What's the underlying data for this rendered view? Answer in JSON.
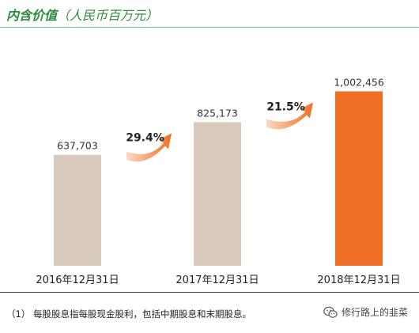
{
  "header": {
    "title_main": "内含价值",
    "title_unit": "（人民币百万元）"
  },
  "chart_data": {
    "type": "bar",
    "title": "内含价值（人民币百万元）",
    "categories": [
      "2016年12月31日",
      "2017年12月31日",
      "2018年12月31日"
    ],
    "values": [
      637703,
      825173,
      1002456
    ],
    "value_labels": [
      "637,703",
      "825,173",
      "1,002,456"
    ],
    "growth": [
      {
        "label": "29.4%"
      },
      {
        "label": "21.5%"
      }
    ],
    "xlabel": "",
    "ylabel": "",
    "grid": false,
    "legend": "none",
    "colors": [
      "#d8cabb",
      "#d8cabb",
      "#ef7024"
    ],
    "arrow_color": "#f08a4b"
  },
  "footnote": "（1） 每股股息指每股现金股利，包括中期股息和末期股息。",
  "watermark": {
    "icon": "wechat-icon",
    "text": "修行路上的韭菜"
  }
}
